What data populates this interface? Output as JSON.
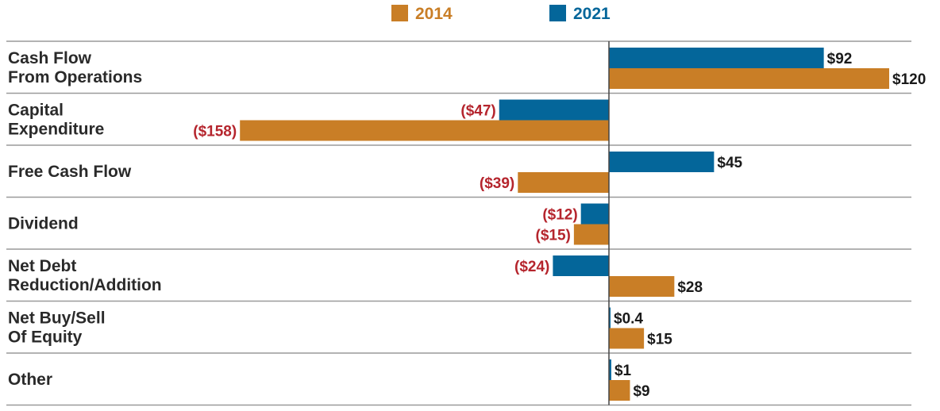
{
  "chart_data": {
    "type": "bar",
    "orientation": "horizontal",
    "title": "",
    "xlabel": "",
    "ylabel": "",
    "xlim": [
      -158,
      120
    ],
    "grid": false,
    "legend_position": "top-center",
    "categories": [
      [
        "Cash Flow",
        "From Operations"
      ],
      [
        "Capital",
        "Expenditure"
      ],
      [
        "Free Cash Flow"
      ],
      [
        "Dividend"
      ],
      [
        "Net Debt",
        "Reduction/Addition"
      ],
      [
        "Net Buy/Sell",
        "Of Equity"
      ],
      [
        "Other"
      ]
    ],
    "series": [
      {
        "name": "2021",
        "color": "#04669a",
        "values": [
          92,
          -47,
          45,
          -12,
          -24,
          0.4,
          1
        ],
        "labels": [
          "$92",
          "($47)",
          "$45",
          "($12)",
          "($24)",
          "$0.4",
          "$1"
        ]
      },
      {
        "name": "2014",
        "color": "#c97e26",
        "values": [
          120,
          -158,
          -39,
          -15,
          28,
          15,
          9
        ],
        "labels": [
          "$120",
          "($158)",
          "($39)",
          "($15)",
          "$28",
          "$15",
          "$9"
        ]
      }
    ],
    "legend": [
      {
        "name": "2014",
        "color": "#c97e26"
      },
      {
        "name": "2021",
        "color": "#04669a"
      }
    ]
  },
  "colors": {
    "label_negative": "#b5252d",
    "label_positive": "#1a1a1a",
    "divider": "#9a9a9a",
    "axis": "#444444"
  }
}
